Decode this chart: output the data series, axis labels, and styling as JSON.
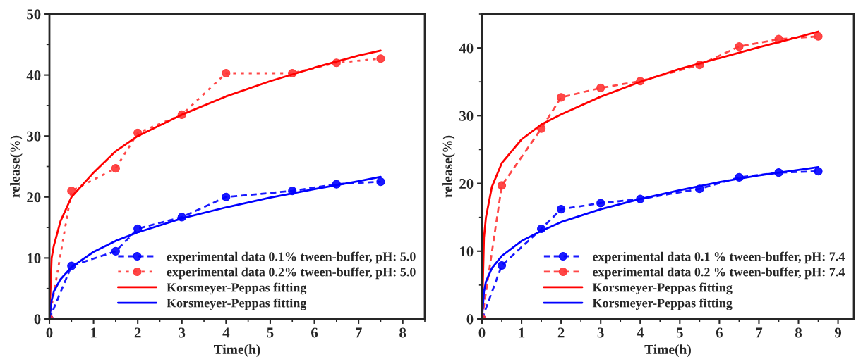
{
  "chart_data": [
    {
      "type": "line",
      "xlabel": "Time(h)",
      "ylabel": "release(%)",
      "xlim": [
        0,
        8.5
      ],
      "ylim": [
        0,
        50
      ],
      "xticks": [
        0,
        1,
        2,
        3,
        4,
        5,
        6,
        7,
        8
      ],
      "yticks": [
        0,
        10,
        20,
        30,
        40,
        50
      ],
      "legend": "bottom right",
      "grid": false,
      "series": [
        {
          "name": "experimental data 0.1% tween-buffer, pH: 5.0",
          "color": "#0000ff",
          "marker": "circle",
          "line_style": "dashed",
          "x": [
            0,
            0.5,
            1.5,
            2,
            3,
            4,
            5.5,
            6.5,
            7.5
          ],
          "values": [
            0,
            8.7,
            11.1,
            14.8,
            16.7,
            20,
            21,
            22.1,
            22.5
          ]
        },
        {
          "name": "experimental data 0.2% tween-buffer, pH: 5.0",
          "color": "#ff3333",
          "marker": "circle",
          "line_style": "dotted",
          "x": [
            0,
            0.5,
            1.5,
            2,
            3,
            4,
            5.5,
            6.5,
            7.5
          ],
          "values": [
            0,
            21,
            24.7,
            30.5,
            33.5,
            40.3,
            40.3,
            42,
            42.7
          ]
        },
        {
          "name": "Korsmeyer-Peppas fitting",
          "color": "#ff0000",
          "marker": "none",
          "line_style": "solid",
          "x": [
            0,
            0.05,
            0.1,
            0.25,
            0.5,
            1,
            1.5,
            2,
            3,
            4,
            5,
            6,
            7,
            7.5
          ],
          "values": [
            0,
            10,
            12,
            16,
            20,
            24,
            27.5,
            30,
            33.5,
            36.5,
            39,
            41.2,
            43.2,
            44
          ]
        },
        {
          "name": "Korsmeyer-Peppas fitting",
          "color": "#0000ff",
          "marker": "none",
          "line_style": "solid",
          "x": [
            0,
            0.05,
            0.1,
            0.25,
            0.5,
            1,
            1.5,
            2,
            3,
            4,
            5,
            6,
            7,
            7.5
          ],
          "values": [
            0,
            3,
            4.5,
            6.5,
            8.5,
            11,
            12.8,
            14.2,
            16.5,
            18.3,
            19.9,
            21.3,
            22.6,
            23.3
          ]
        }
      ]
    },
    {
      "type": "line",
      "xlabel": "Time(h)",
      "ylabel": "release(%)",
      "xlim": [
        0,
        9.4
      ],
      "ylim": [
        0,
        45
      ],
      "xticks": [
        0,
        1,
        2,
        3,
        4,
        5,
        6,
        7,
        8,
        9
      ],
      "yticks": [
        0,
        10,
        20,
        30,
        40
      ],
      "legend": "bottom right",
      "grid": false,
      "series": [
        {
          "name": "experimental data 0.1 % tween-buffer, pH: 7.4",
          "color": "#0000ff",
          "marker": "circle",
          "line_style": "dashed",
          "x": [
            0,
            0.5,
            1.5,
            2,
            3,
            4,
            5.5,
            6.5,
            7.5,
            8.5
          ],
          "values": [
            0,
            7.9,
            13.3,
            16.2,
            17.1,
            17.7,
            19.2,
            20.9,
            21.6,
            21.8
          ]
        },
        {
          "name": "experimental data 0.2 % tween-buffer, pH: 7.4",
          "color": "#ff3333",
          "marker": "circle",
          "line_style": "dashed",
          "x": [
            0,
            0.5,
            1.5,
            2,
            3,
            4,
            5.5,
            6.5,
            7.5,
            8.5
          ],
          "values": [
            0,
            19.7,
            28.1,
            32.7,
            34.1,
            35.1,
            37.5,
            40.2,
            41.3,
            41.7
          ]
        },
        {
          "name": "Korsmeyer-Peppas fitting",
          "color": "#ff0000",
          "marker": "none",
          "line_style": "solid",
          "x": [
            0,
            0.05,
            0.1,
            0.25,
            0.5,
            1,
            1.5,
            2,
            3,
            4,
            5,
            6,
            7,
            8,
            8.5
          ],
          "values": [
            0,
            12,
            15,
            19.5,
            23,
            26.5,
            28.7,
            30.2,
            32.8,
            35,
            36.9,
            38.5,
            40.1,
            41.6,
            42.4
          ]
        },
        {
          "name": "Korsmeyer-Peppas fitting",
          "color": "#0000ff",
          "marker": "none",
          "line_style": "solid",
          "x": [
            0,
            0.05,
            0.1,
            0.25,
            0.5,
            1,
            1.5,
            2,
            3,
            4,
            5,
            6,
            7,
            8,
            8.5
          ],
          "values": [
            0,
            4,
            5.5,
            7.5,
            9.3,
            11.5,
            13,
            14.3,
            16.2,
            17.7,
            19,
            20.2,
            21.2,
            22,
            22.4
          ]
        }
      ]
    }
  ]
}
